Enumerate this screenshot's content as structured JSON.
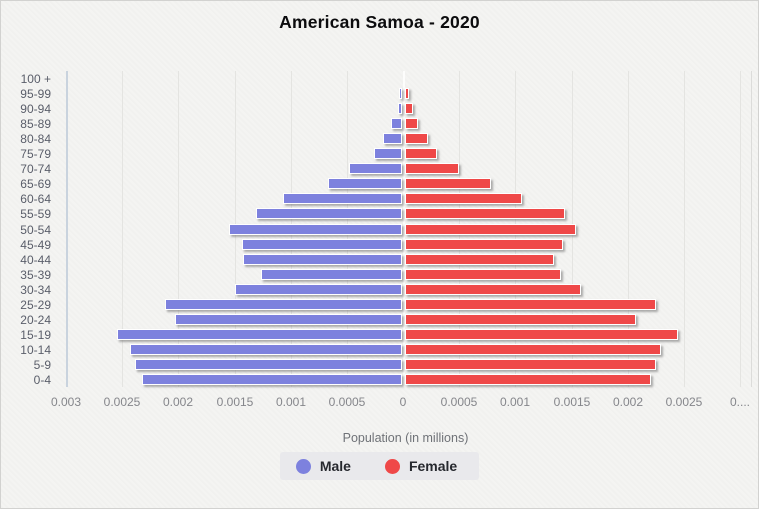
{
  "chart_data": {
    "type": "bar",
    "variant": "population-pyramid",
    "title": "American Samoa - 2020",
    "xlabel": "Population (in millions)",
    "categories": [
      "100 +",
      "95-99",
      "90-94",
      "85-89",
      "80-84",
      "75-79",
      "70-74",
      "65-69",
      "60-64",
      "55-59",
      "50-54",
      "45-49",
      "40-44",
      "35-39",
      "30-34",
      "25-29",
      "20-24",
      "15-19",
      "10-14",
      "5-9",
      "0-4"
    ],
    "series": [
      {
        "name": "Male",
        "color": "#7d81de",
        "values": [
          0,
          1e-05,
          2e-05,
          8e-05,
          0.00015,
          0.00023,
          0.00045,
          0.00064,
          0.00104,
          0.00128,
          0.00152,
          0.00141,
          0.0014,
          0.00124,
          0.00147,
          0.00209,
          0.002,
          0.00252,
          0.0024,
          0.00236,
          0.0023
        ]
      },
      {
        "name": "Female",
        "color": "#ef4848",
        "values": [
          0,
          2e-05,
          5e-05,
          0.0001,
          0.00019,
          0.00027,
          0.00046,
          0.00075,
          0.00102,
          0.00141,
          0.0015,
          0.00139,
          0.00131,
          0.00137,
          0.00155,
          0.00222,
          0.00204,
          0.00241,
          0.00226,
          0.00222,
          0.00217
        ]
      }
    ],
    "x_axis": {
      "tick_labels": [
        "0.003",
        "0.0025",
        "0.002",
        "0.0015",
        "0.001",
        "0.0005",
        "0",
        "0.0005",
        "0.001",
        "0.0015",
        "0.002",
        "0.0025",
        "0...."
      ],
      "max_each_side": 0.003,
      "grid": true
    },
    "legend": {
      "position": "bottom",
      "items": [
        "Male",
        "Female"
      ]
    }
  }
}
